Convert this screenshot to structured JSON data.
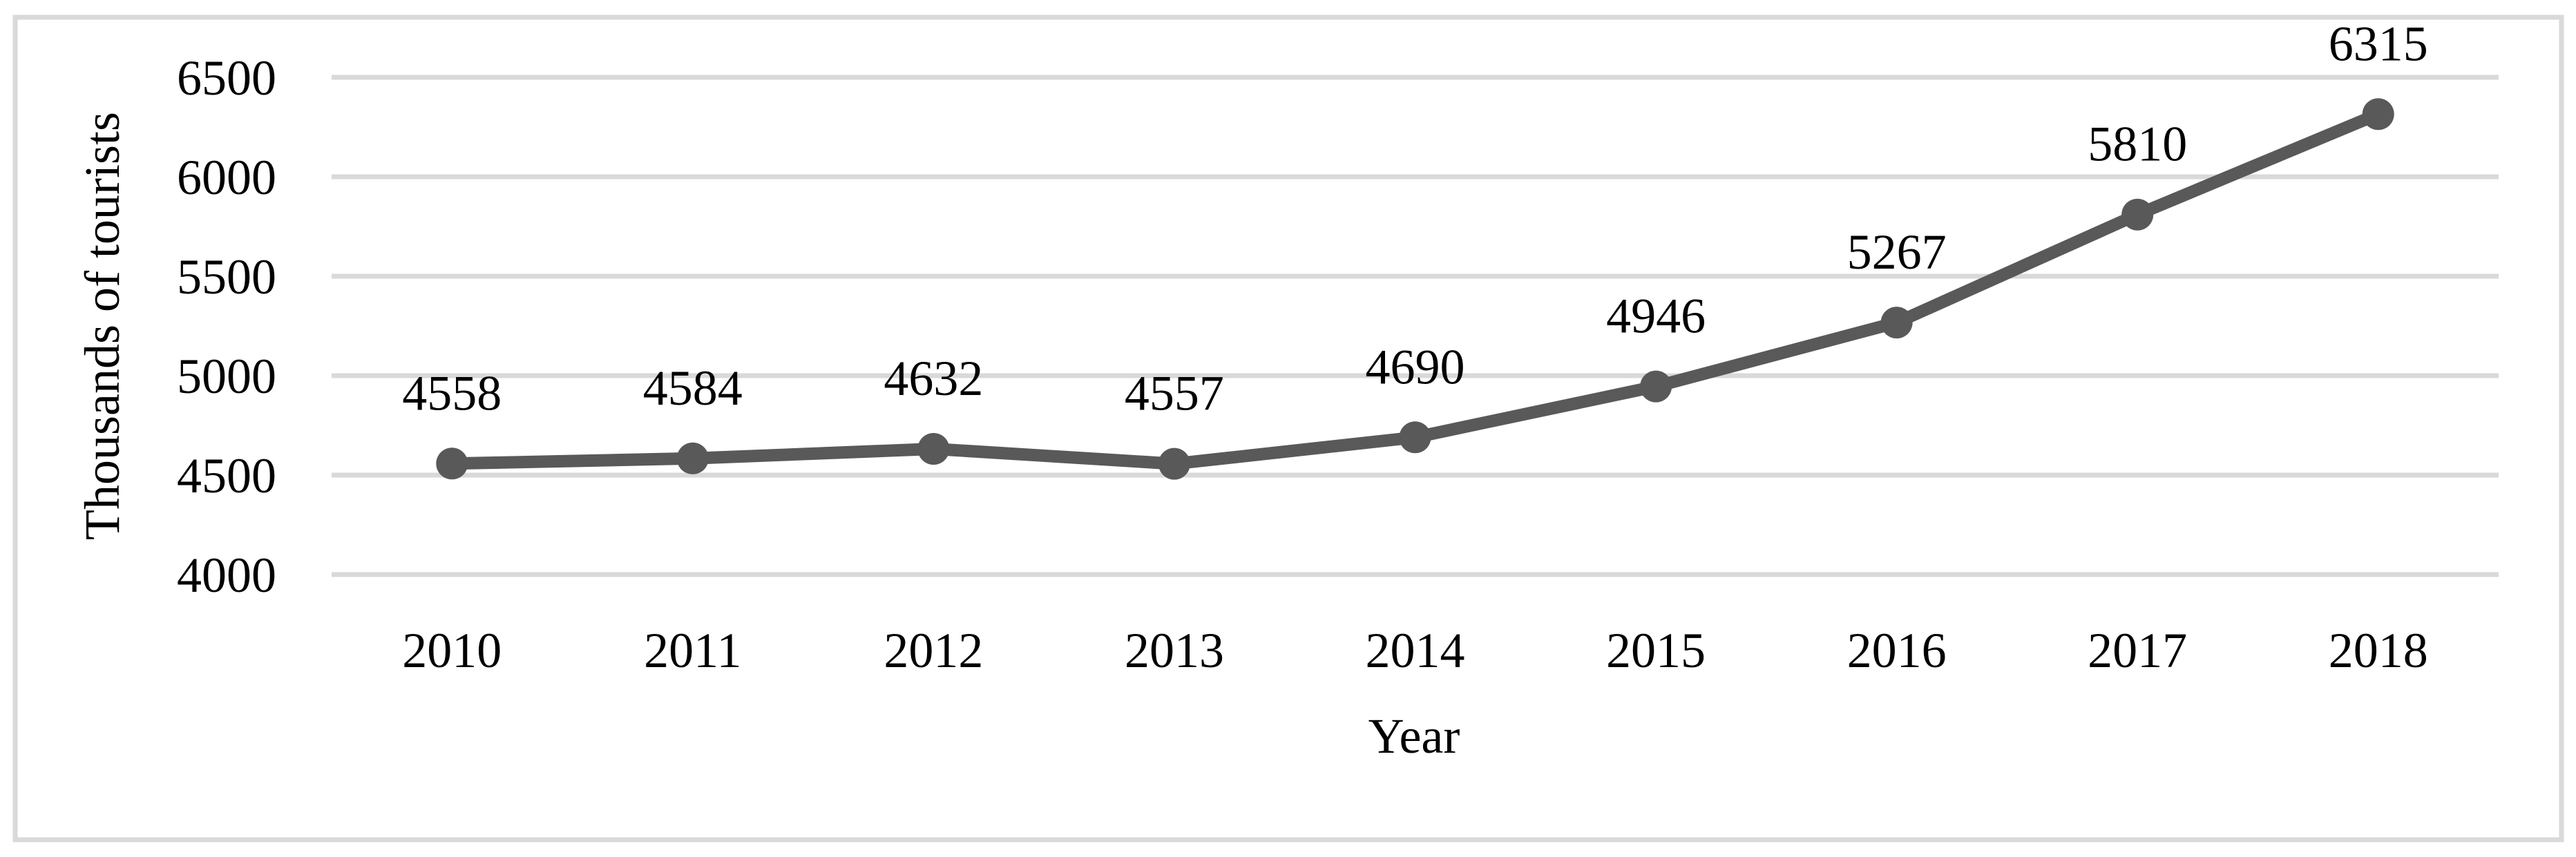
{
  "figure": {
    "background": "#ffffff",
    "frame_color": "#d9d9d9",
    "text_color": "#000000"
  },
  "chart_data": {
    "type": "line",
    "title": "",
    "categories": [
      "2010",
      "2011",
      "2012",
      "2013",
      "2014",
      "2015",
      "2016",
      "2017",
      "2018"
    ],
    "series": [
      {
        "name": "Thousands of tourists",
        "values": [
          4558,
          4584,
          4632,
          4557,
          4690,
          4946,
          5267,
          5810,
          6315
        ],
        "color": "#595959",
        "marker": "circle",
        "data_labels_visible": true
      }
    ],
    "xlabel": "Year",
    "ylabel": "Thousands of tourists",
    "ylim": [
      4000,
      6500
    ],
    "yticks": [
      4000,
      4500,
      5000,
      5500,
      6000,
      6500
    ],
    "grid": "horizontal",
    "gridline_color": "#d9d9d9",
    "legend": "none"
  }
}
